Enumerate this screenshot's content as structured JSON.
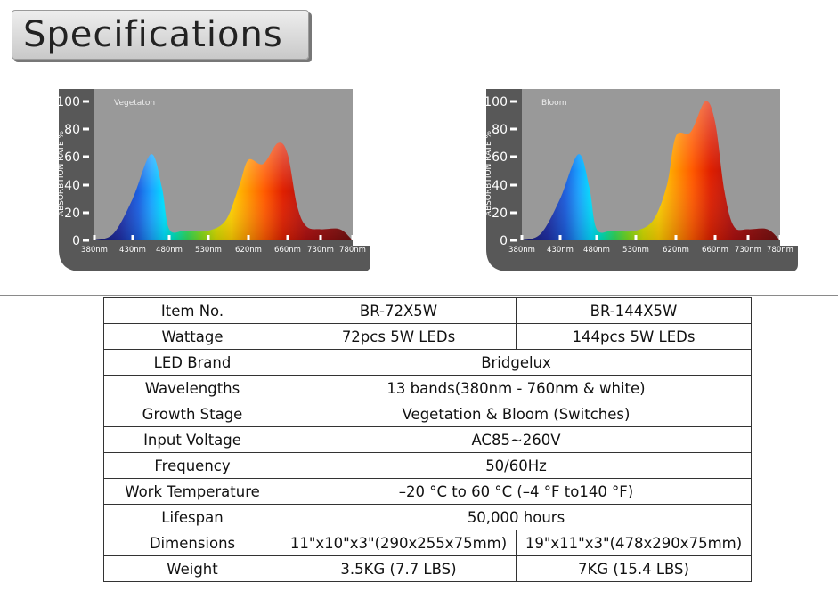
{
  "header": {
    "title": "Specifications"
  },
  "chart_data": [
    {
      "type": "area",
      "title": "Vegetaton",
      "ylabel": "ABSORBTION RATE %",
      "ylim": [
        0,
        100
      ],
      "y_ticks": [
        "100",
        "80",
        "60",
        "40",
        "20",
        "0"
      ],
      "x_ticks": [
        "380nm",
        "430nm",
        "480nm",
        "530nm",
        "620nm",
        "660nm",
        "730nm",
        "780nm"
      ],
      "x": [
        380,
        405,
        430,
        455,
        470,
        480,
        500,
        530,
        570,
        600,
        620,
        635,
        650,
        660,
        680,
        700,
        730,
        760,
        780
      ],
      "values": [
        0,
        5,
        30,
        62,
        38,
        8,
        7,
        7,
        15,
        40,
        58,
        55,
        70,
        62,
        25,
        10,
        8,
        8,
        0
      ]
    },
    {
      "type": "area",
      "title": "Bloom",
      "ylabel": "ABSORBTION RATE %",
      "ylim": [
        0,
        100
      ],
      "y_ticks": [
        "100",
        "80",
        "60",
        "40",
        "20",
        "0"
      ],
      "x_ticks": [
        "380nm",
        "430nm",
        "480nm",
        "530nm",
        "620nm",
        "660nm",
        "730nm",
        "780nm"
      ],
      "x": [
        380,
        405,
        430,
        455,
        470,
        480,
        500,
        530,
        570,
        600,
        620,
        635,
        650,
        660,
        680,
        700,
        730,
        760,
        780
      ],
      "values": [
        0,
        5,
        30,
        62,
        38,
        8,
        7,
        7,
        15,
        40,
        75,
        78,
        100,
        85,
        35,
        10,
        8,
        8,
        0
      ]
    }
  ],
  "table": {
    "rows": [
      {
        "label": "Item No.",
        "cells": [
          "BR-72X5W",
          "BR-144X5W"
        ]
      },
      {
        "label": "Wattage",
        "cells": [
          "72pcs 5W LEDs",
          "144pcs 5W LEDs"
        ]
      },
      {
        "label": "LED Brand",
        "cells": [
          "Bridgelux"
        ]
      },
      {
        "label": "Wavelengths",
        "cells": [
          "13 bands(380nm - 760nm & white)"
        ]
      },
      {
        "label": "Growth Stage",
        "cells": [
          "Vegetation & Bloom (Switches)"
        ]
      },
      {
        "label": "Input Voltage",
        "cells": [
          "AC85~260V"
        ]
      },
      {
        "label": "Frequency",
        "cells": [
          "50/60Hz"
        ]
      },
      {
        "label": "Work Temperature",
        "cells": [
          "–20 °C to 60 °C (–4 °F to140 °F)"
        ]
      },
      {
        "label": "Lifespan",
        "cells": [
          "50,000 hours"
        ]
      },
      {
        "label": "Dimensions",
        "cells": [
          "11\"x10\"x3\"(290x255x75mm)",
          "19\"x11\"x3\"(478x290x75mm)"
        ]
      },
      {
        "label": "Weight",
        "cells": [
          "3.5KG (7.7 LBS)",
          "7KG (15.4 LBS)"
        ]
      }
    ]
  }
}
